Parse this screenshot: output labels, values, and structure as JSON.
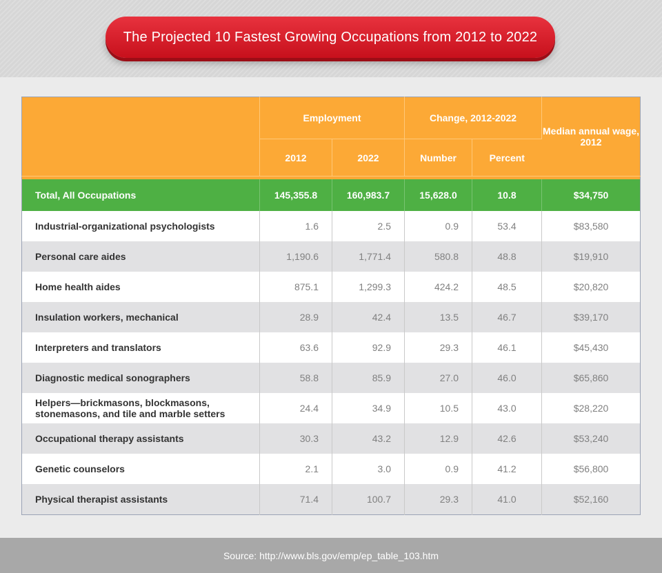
{
  "title": "The Projected 10 Fastest Growing Occupations from 2012 to 2022",
  "colors": {
    "header": "#fca936",
    "total_row": "#4eb044",
    "title_pill": "#d41c28",
    "row_alt": "#e1e1e3"
  },
  "chart_data": {
    "type": "table",
    "title": "The Projected 10 Fastest Growing Occupations from 2012 to 2022",
    "header": {
      "employment": "Employment",
      "change": "Change, 2012-2022",
      "median_wage": "Median annual wage, 2012",
      "year_2012": "2012",
      "year_2022": "2022",
      "number": "Number",
      "percent": "Percent"
    },
    "total": {
      "occupation": "Total, All Occupations",
      "emp_2012": "145,355.8",
      "emp_2022": "160,983.7",
      "change_number": "15,628.0",
      "change_percent": "10.8",
      "median_wage": "$34,750"
    },
    "rows": [
      {
        "occupation": "Industrial-organizational psychologists",
        "emp_2012": "1.6",
        "emp_2022": "2.5",
        "change_number": "0.9",
        "change_percent": "53.4",
        "median_wage": "$83,580"
      },
      {
        "occupation": "Personal care aides",
        "emp_2012": "1,190.6",
        "emp_2022": "1,771.4",
        "change_number": "580.8",
        "change_percent": "48.8",
        "median_wage": "$19,910"
      },
      {
        "occupation": "Home health aides",
        "emp_2012": "875.1",
        "emp_2022": "1,299.3",
        "change_number": "424.2",
        "change_percent": "48.5",
        "median_wage": "$20,820"
      },
      {
        "occupation": "Insulation workers, mechanical",
        "emp_2012": "28.9",
        "emp_2022": "42.4",
        "change_number": "13.5",
        "change_percent": "46.7",
        "median_wage": "$39,170"
      },
      {
        "occupation": "Interpreters and translators",
        "emp_2012": "63.6",
        "emp_2022": "92.9",
        "change_number": "29.3",
        "change_percent": "46.1",
        "median_wage": "$45,430"
      },
      {
        "occupation": "Diagnostic medical sonographers",
        "emp_2012": "58.8",
        "emp_2022": "85.9",
        "change_number": "27.0",
        "change_percent": "46.0",
        "median_wage": "$65,860"
      },
      {
        "occupation": "Helpers—brickmasons, blockmasons, stonemasons, and tile and marble setters",
        "emp_2012": "24.4",
        "emp_2022": "34.9",
        "change_number": "10.5",
        "change_percent": "43.0",
        "median_wage": "$28,220"
      },
      {
        "occupation": "Occupational therapy assistants",
        "emp_2012": "30.3",
        "emp_2022": "43.2",
        "change_number": "12.9",
        "change_percent": "42.6",
        "median_wage": "$53,240"
      },
      {
        "occupation": "Genetic counselors",
        "emp_2012": "2.1",
        "emp_2022": "3.0",
        "change_number": "0.9",
        "change_percent": "41.2",
        "median_wage": "$56,800"
      },
      {
        "occupation": "Physical therapist assistants",
        "emp_2012": "71.4",
        "emp_2022": "100.7",
        "change_number": "29.3",
        "change_percent": "41.0",
        "median_wage": "$52,160"
      }
    ]
  },
  "source": "Source: http://www.bls.gov/emp/ep_table_103.htm"
}
